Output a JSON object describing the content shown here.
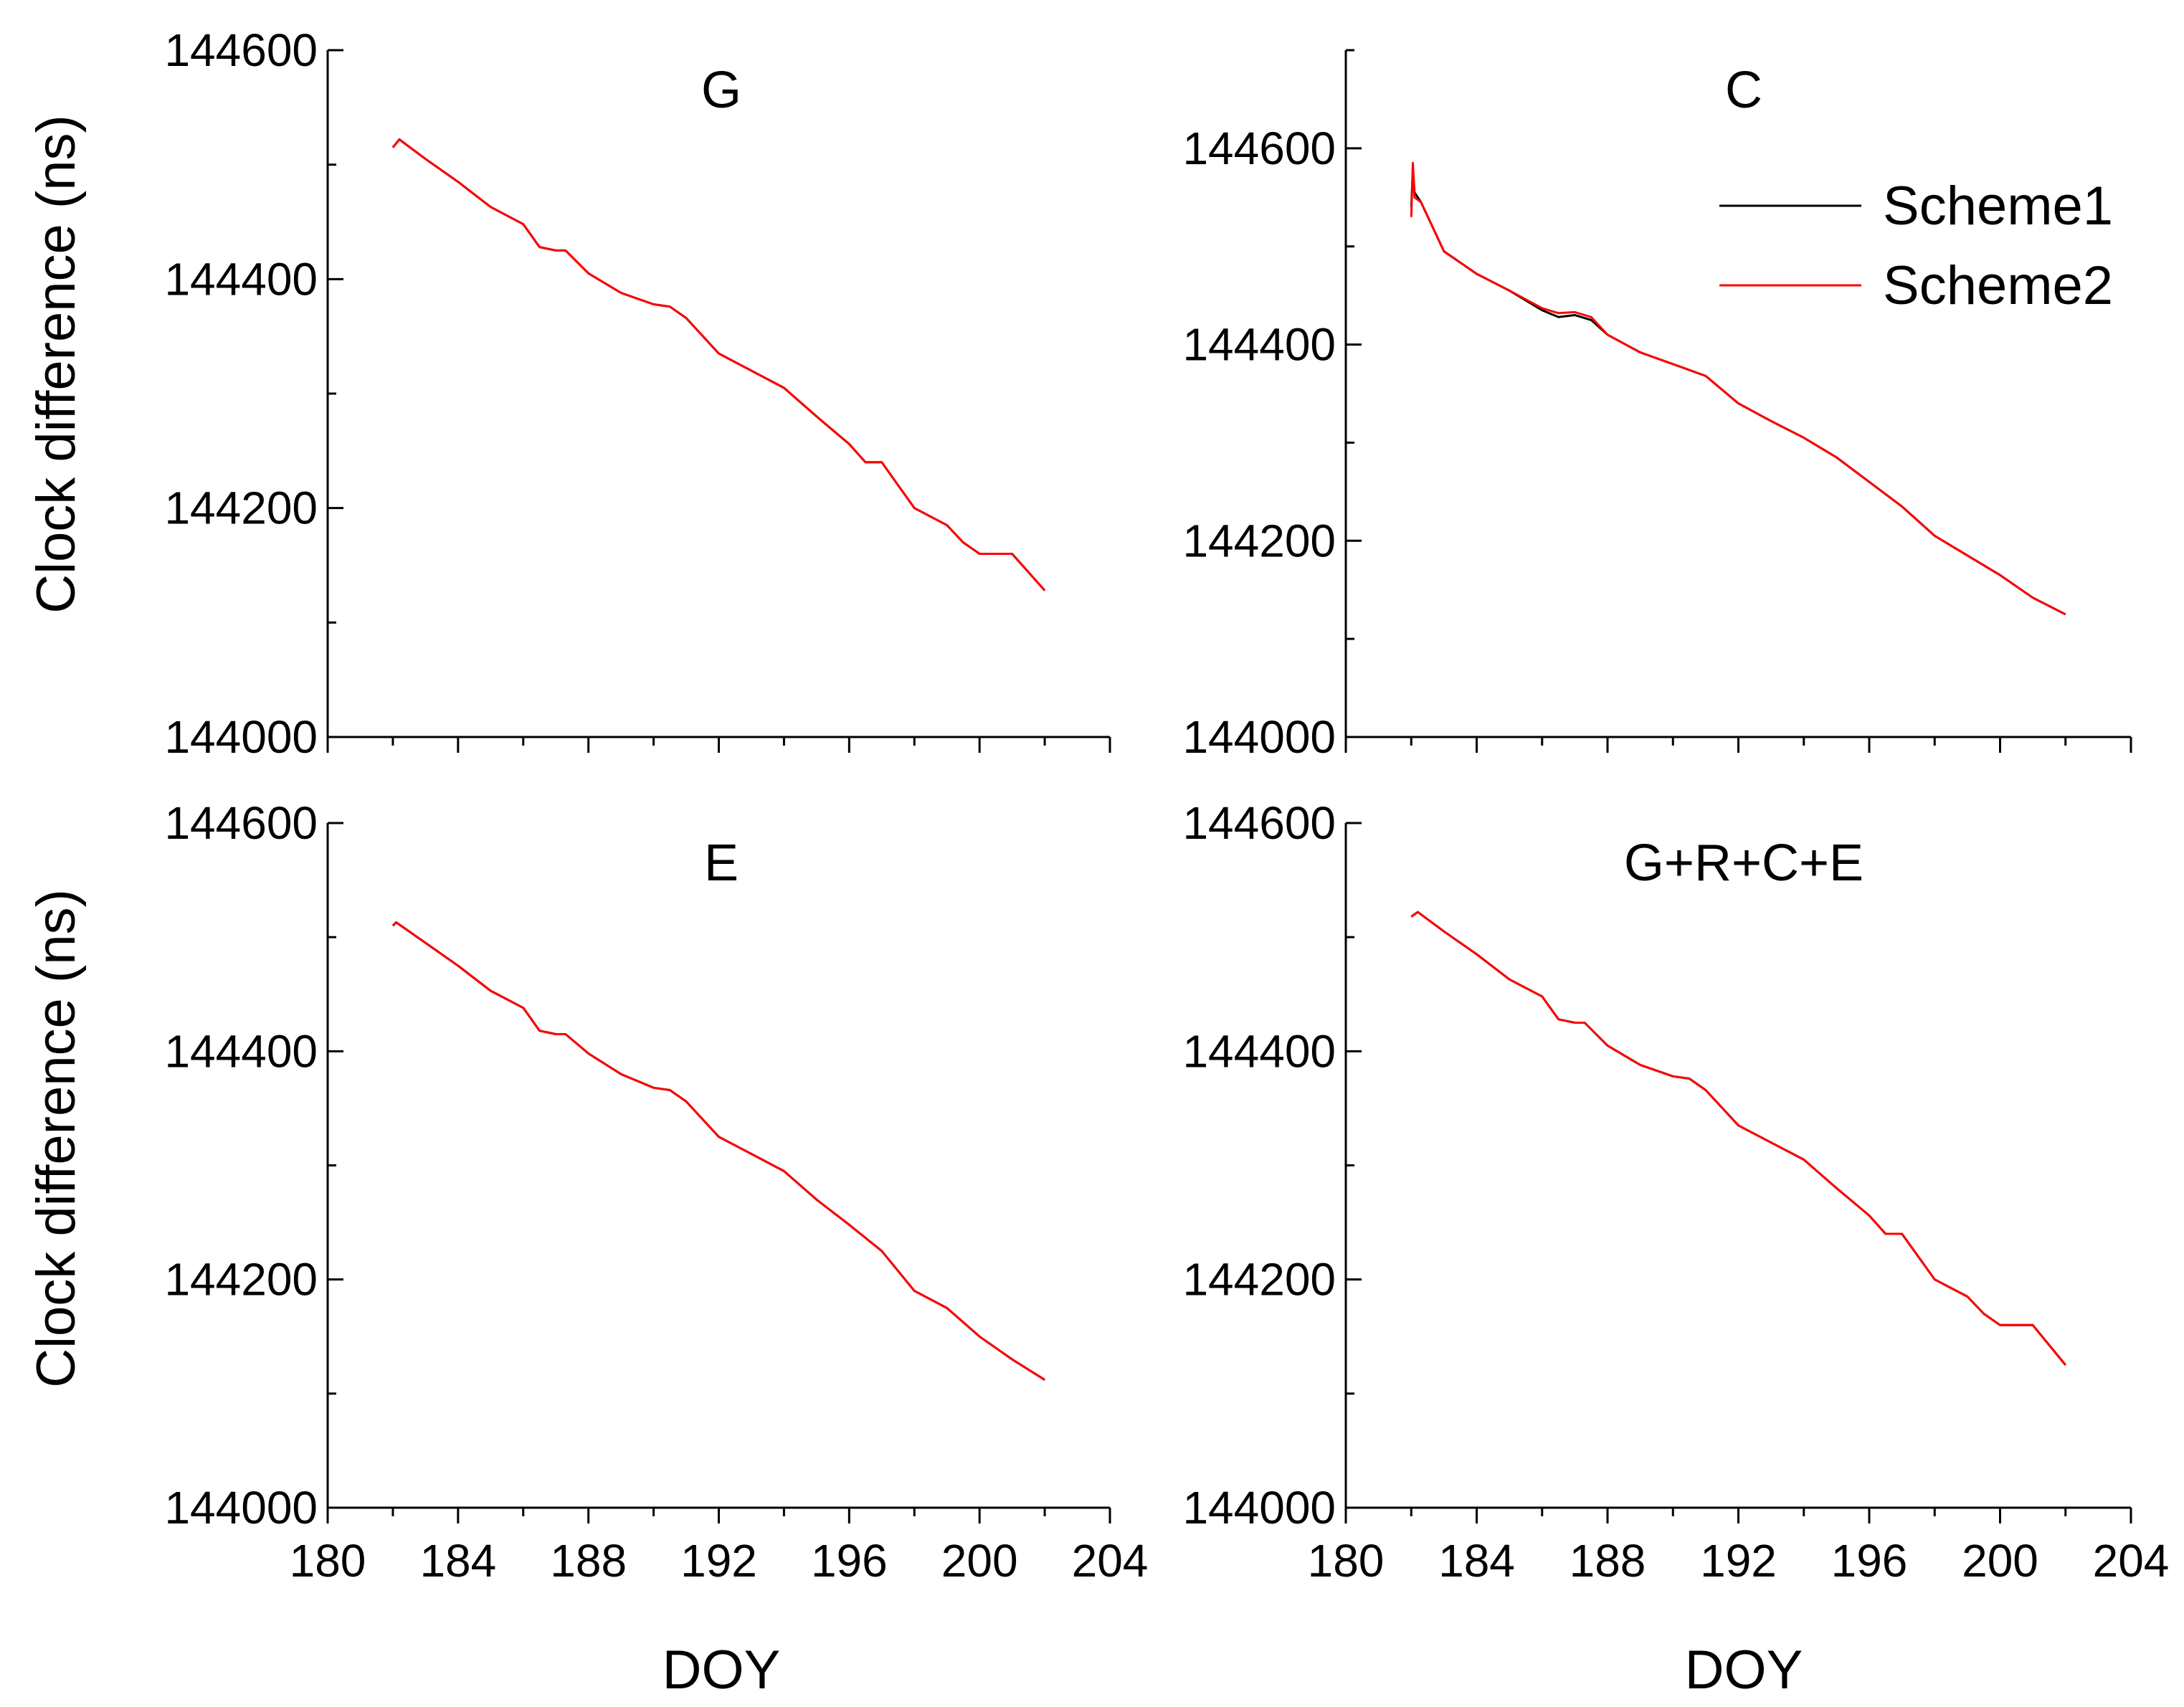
{
  "chart_data": {
    "type": "line",
    "figure_ylabel": "Clock difference (ns)",
    "figure_xlabel": "DOY",
    "legend": [
      {
        "name": "Scheme1",
        "color": "#000000"
      },
      {
        "name": "Scheme2",
        "color": "#ff0000"
      }
    ],
    "x_ticks": [
      180,
      184,
      188,
      192,
      196,
      200,
      204
    ],
    "panels": [
      {
        "title": "G",
        "xlim": [
          180,
          204
        ],
        "ylim": [
          144000,
          144600
        ],
        "y_ticks": [
          144000,
          144200,
          144400,
          144600
        ],
        "series": [
          {
            "name": "Scheme1",
            "x": [
              182,
              182.2,
              183,
              184,
              185,
              186,
              186.5,
              187,
              187.3,
              188,
              189,
              190,
              190.5,
              191,
              192,
              193,
              194,
              195,
              196,
              196.5,
              197,
              197.5,
              198,
              199,
              199.5,
              200,
              201,
              202
            ],
            "y": [
              144515,
              144522,
              144505,
              144485,
              144463,
              144448,
              144428,
              144425,
              144425,
              144405,
              144388,
              144378,
              144376,
              144366,
              144335,
              144320,
              144305,
              144280,
              144256,
              144240,
              144240,
              144220,
              144200,
              144185,
              144170,
              144160,
              144160,
              144128
            ]
          },
          {
            "name": "Scheme2",
            "x": [
              182,
              182.2,
              183,
              184,
              185,
              186,
              186.5,
              187,
              187.3,
              188,
              189,
              190,
              190.5,
              191,
              192,
              193,
              194,
              195,
              196,
              196.5,
              197,
              197.5,
              198,
              199,
              199.5,
              200,
              201,
              202
            ],
            "y": [
              144515,
              144522,
              144505,
              144485,
              144463,
              144448,
              144428,
              144425,
              144425,
              144405,
              144388,
              144378,
              144376,
              144366,
              144335,
              144320,
              144305,
              144280,
              144256,
              144240,
              144240,
              144220,
              144200,
              144185,
              144170,
              144160,
              144160,
              144128
            ]
          }
        ]
      },
      {
        "title": "C",
        "xlim": [
          180,
          204
        ],
        "ylim": [
          144000,
          144700
        ],
        "y_ticks": [
          144000,
          144200,
          144400,
          144600
        ],
        "series": [
          {
            "name": "Scheme1",
            "x": [
              182,
              182.05,
              182.1,
              182.3,
              183,
              184,
              185,
              186,
              186.5,
              187,
              187.5,
              188,
              189,
              190,
              191,
              192,
              193,
              194,
              195,
              196,
              197,
              198,
              199,
              200,
              201,
              202
            ],
            "y": [
              144540,
              144580,
              144555,
              144545,
              144495,
              144472,
              144455,
              144435,
              144428,
              144430,
              144425,
              144410,
              144392,
              144380,
              144368,
              144340,
              144322,
              144305,
              144285,
              144260,
              144235,
              144205,
              144185,
              144165,
              144142,
              144125
            ]
          },
          {
            "name": "Scheme2",
            "x": [
              182,
              182.05,
              182.1,
              182.3,
              183,
              184,
              185,
              186,
              186.5,
              187,
              187.5,
              188,
              189,
              190,
              191,
              192,
              193,
              194,
              195,
              196,
              197,
              198,
              199,
              200,
              201,
              202
            ],
            "y": [
              144530,
              144585,
              144550,
              144545,
              144495,
              144472,
              144455,
              144437,
              144432,
              144433,
              144428,
              144410,
              144392,
              144380,
              144368,
              144340,
              144322,
              144305,
              144285,
              144260,
              144235,
              144205,
              144185,
              144165,
              144142,
              144125
            ]
          }
        ]
      },
      {
        "title": "E",
        "xlim": [
          180,
          204
        ],
        "ylim": [
          144000,
          144600
        ],
        "y_ticks": [
          144000,
          144200,
          144400,
          144600
        ],
        "series": [
          {
            "name": "Scheme1",
            "x": [
              182,
              182.1,
              183,
              184,
              185,
              186,
              186.5,
              187,
              187.3,
              188,
              189,
              190,
              190.5,
              191,
              192,
              193,
              194,
              195,
              196,
              197,
              198,
              199,
              200,
              201,
              202
            ],
            "y": [
              144510,
              144513,
              144495,
              144475,
              144453,
              144438,
              144418,
              144415,
              144415,
              144398,
              144380,
              144368,
              144366,
              144356,
              144325,
              144310,
              144295,
              144270,
              144248,
              144225,
              144190,
              144175,
              144150,
              144130,
              144112
            ]
          },
          {
            "name": "Scheme2",
            "x": [
              182,
              182.1,
              183,
              184,
              185,
              186,
              186.5,
              187,
              187.3,
              188,
              189,
              190,
              190.5,
              191,
              192,
              193,
              194,
              195,
              196,
              197,
              198,
              199,
              200,
              201,
              202
            ],
            "y": [
              144510,
              144513,
              144495,
              144475,
              144453,
              144438,
              144418,
              144415,
              144415,
              144398,
              144380,
              144368,
              144366,
              144356,
              144325,
              144310,
              144295,
              144270,
              144248,
              144225,
              144190,
              144175,
              144150,
              144130,
              144112
            ]
          }
        ]
      },
      {
        "title": "G+R+C+E",
        "xlim": [
          180,
          204
        ],
        "ylim": [
          144000,
          144600
        ],
        "y_ticks": [
          144000,
          144200,
          144400,
          144600
        ],
        "series": [
          {
            "name": "Scheme1",
            "x": [
              182,
              182.2,
              183,
              184,
              185,
              186,
              186.5,
              187,
              187.3,
              188,
              189,
              190,
              190.5,
              191,
              192,
              193,
              194,
              195,
              196,
              196.5,
              197,
              197.5,
              198,
              199,
              199.5,
              200,
              201,
              202
            ],
            "y": [
              144518,
              144522,
              144505,
              144485,
              144463,
              144448,
              144428,
              144425,
              144425,
              144405,
              144388,
              144378,
              144376,
              144366,
              144335,
              144320,
              144305,
              144280,
              144256,
              144240,
              144240,
              144220,
              144200,
              144185,
              144170,
              144160,
              144160,
              144125
            ]
          },
          {
            "name": "Scheme2",
            "x": [
              182,
              182.2,
              183,
              184,
              185,
              186,
              186.5,
              187,
              187.3,
              188,
              189,
              190,
              190.5,
              191,
              192,
              193,
              194,
              195,
              196,
              196.5,
              197,
              197.5,
              198,
              199,
              199.5,
              200,
              201,
              202
            ],
            "y": [
              144518,
              144522,
              144505,
              144485,
              144463,
              144448,
              144428,
              144425,
              144425,
              144405,
              144388,
              144378,
              144376,
              144366,
              144335,
              144320,
              144305,
              144280,
              144256,
              144240,
              144240,
              144220,
              144200,
              144185,
              144170,
              144160,
              144160,
              144125
            ]
          }
        ]
      }
    ]
  }
}
